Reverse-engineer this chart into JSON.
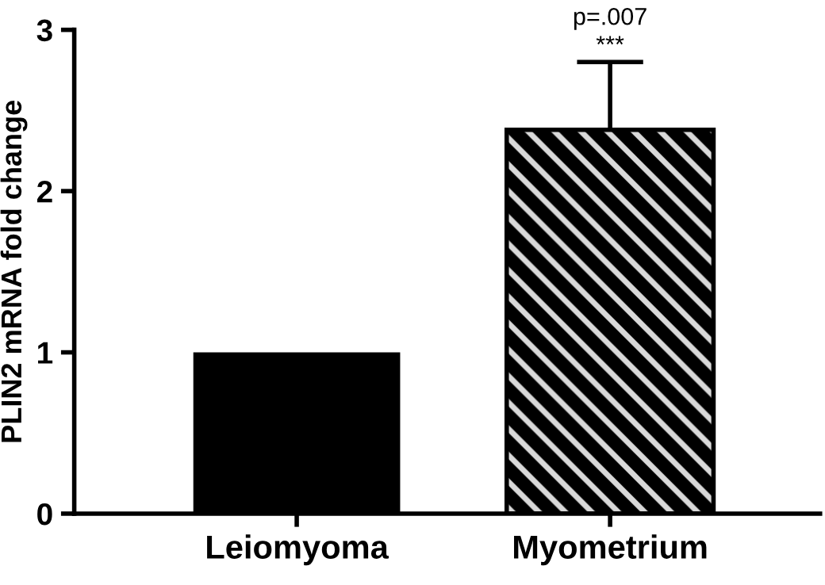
{
  "chart_data": {
    "type": "bar",
    "ylabel": "PLIN2 mRNA fold change",
    "categories": [
      "Leiomyoma",
      "Myometrium"
    ],
    "values": [
      1.0,
      2.38
    ],
    "colors": [
      "#000000",
      "#000000"
    ],
    "errors": [
      null,
      0.42
    ],
    "ylim": [
      0,
      3
    ],
    "yticks": [
      0,
      1,
      2,
      3
    ],
    "grid": false,
    "annotations": [
      "p=.007",
      {
        "text": "***",
        "x": "Myometrium",
        "y": 2.8
      }
    ]
  }
}
